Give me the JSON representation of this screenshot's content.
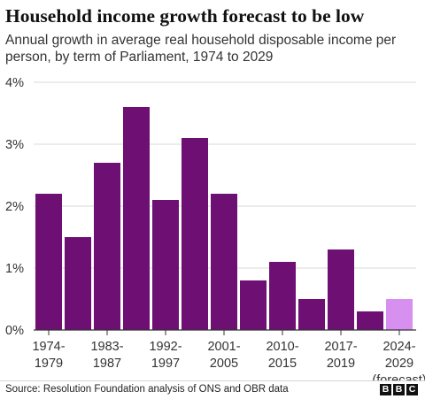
{
  "header": {
    "title": "Household income growth forecast to be low",
    "subtitle": "Annual growth in average real household disposable income per person, by term of Parliament, 1974 to 2029"
  },
  "footer": {
    "source": "Source: Resolution Foundation analysis of ONS and OBR data",
    "logo_text": "BBC"
  },
  "colors": {
    "bar": "#6e0f74",
    "forecast_bar": "#d78ff0",
    "grid": "#d9d9d9",
    "axis": "#333333"
  },
  "chart_data": {
    "type": "bar",
    "title": "Household income growth forecast to be low",
    "subtitle": "Annual growth in average real household disposable income per person, by term of Parliament, 1974 to 2029",
    "xlabel": "",
    "ylabel": "",
    "ylim": [
      0,
      4
    ],
    "y_ticks": [
      "0%",
      "1%",
      "2%",
      "3%",
      "4%"
    ],
    "grid": true,
    "legend": "none",
    "values": [
      2.2,
      1.5,
      2.7,
      3.6,
      2.1,
      3.1,
      2.2,
      0.8,
      1.1,
      0.5,
      1.3,
      0.3,
      0.5
    ],
    "forecast_index": 12,
    "x_labels": [
      {
        "bar_index": 0,
        "line1": "1974-",
        "line2": "1979",
        "line3": ""
      },
      {
        "bar_index": 2,
        "line1": "1983-",
        "line2": "1987",
        "line3": ""
      },
      {
        "bar_index": 4,
        "line1": "1992-",
        "line2": "1997",
        "line3": ""
      },
      {
        "bar_index": 6,
        "line1": "2001-",
        "line2": "2005",
        "line3": ""
      },
      {
        "bar_index": 8,
        "line1": "2010-",
        "line2": "2015",
        "line3": ""
      },
      {
        "bar_index": 10,
        "line1": "2017-",
        "line2": "2019",
        "line3": ""
      },
      {
        "bar_index": 12,
        "line1": "2024-",
        "line2": "2029",
        "line3": "(forecast)"
      }
    ]
  }
}
